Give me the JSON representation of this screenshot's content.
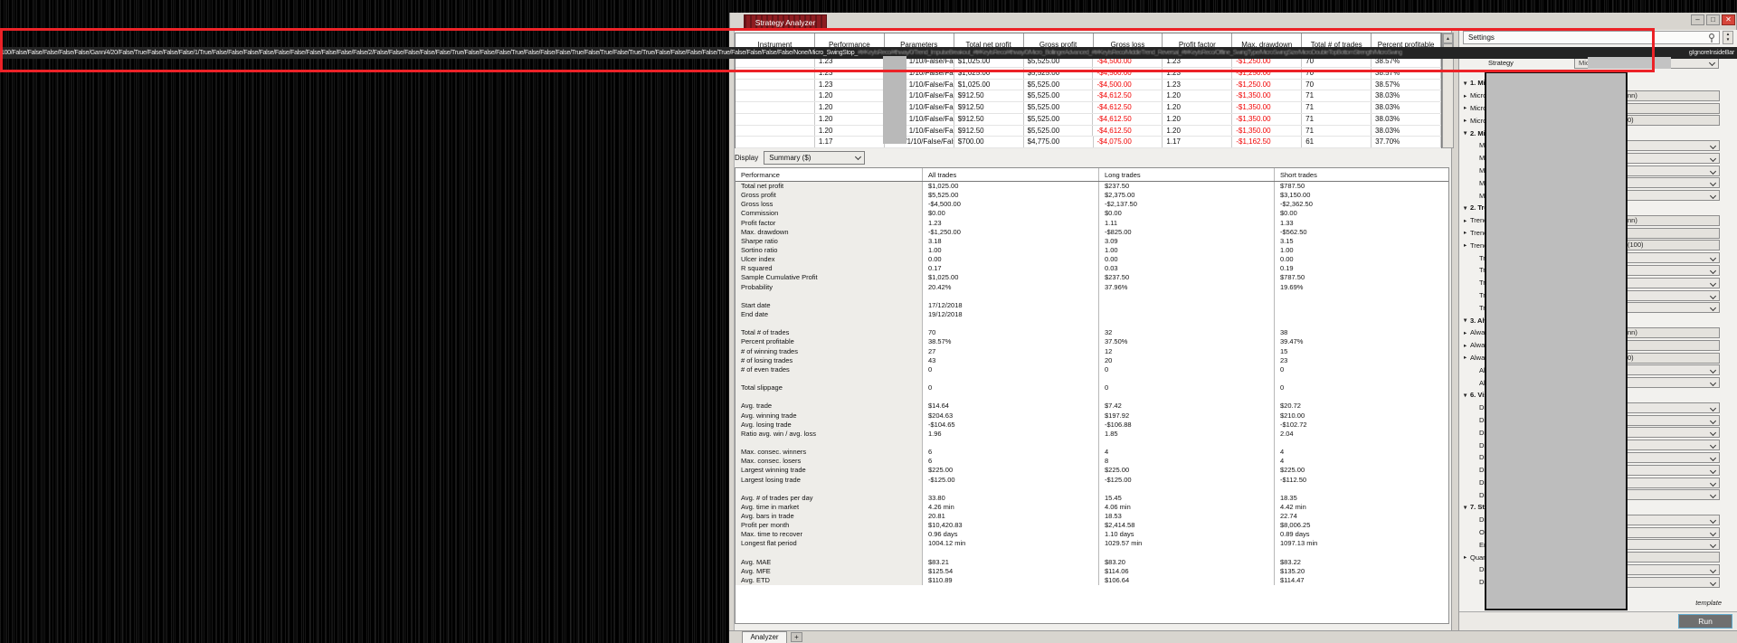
{
  "window": {
    "title": "Strategy Analyzer"
  },
  "icons": {
    "minimize": "–",
    "maximize": "□",
    "close": "✕",
    "spinner_up": "▲",
    "spinner_down": "▼",
    "section_arrow": "▾",
    "expander_arrow": "▸"
  },
  "overlay_bar": {
    "visible_text": "100/False/False/False/False/False/Gann/4/20/False/True/False/False/False/1/True/False/False/False/False/False/False/False/False/False/False/2/False/False/False/False/False/True/False/False/False/True/False/False/False/True/False/True/False/True/True/False/False/False/False/True/False/False/False/False/None/Micro_SwingStop_",
    "obscured_text": "#t#KeyIsReco/#thway/0/Trend_ImpulseBreakout_#t#KeyIsReco/#thway/0/Micro_BollingerAdvanced_#t#KeyIsReco/MiddleTrend_Reversal_#t#KeyIsReco/Offline_SwingType/MicroSwingSize/MicroDoubleTopBottomStrength/MicroSwing",
    "tail_text": "gIgnoreInsideBar"
  },
  "results_table": {
    "columns": [
      "Instrument",
      "Performance",
      "Parameters",
      "Total net profit",
      "Gross profit",
      "Gross loss",
      "Profit factor",
      "Max. drawdown",
      "Total # of trades",
      "Percent profitable"
    ],
    "rows": [
      [
        "",
        "1.23",
        "1/10/False/False",
        "$1,025.00",
        "$5,525.00",
        "-$4,500.00",
        "1.23",
        "-$1,250.00",
        "70",
        "38.57%"
      ],
      [
        "",
        "1.23",
        "1/10/False/False",
        "$1,025.00",
        "$5,525.00",
        "-$4,500.00",
        "1.23",
        "-$1,250.00",
        "70",
        "38.57%"
      ],
      [
        "",
        "1.23",
        "1/10/False/False",
        "$1,025.00",
        "$5,525.00",
        "-$4,500.00",
        "1.23",
        "-$1,250.00",
        "70",
        "38.57%"
      ],
      [
        "",
        "1.20",
        "1/10/False/False",
        "$912.50",
        "$5,525.00",
        "-$4,612.50",
        "1.20",
        "-$1,350.00",
        "71",
        "38.03%"
      ],
      [
        "",
        "1.20",
        "1/10/False/False",
        "$912.50",
        "$5,525.00",
        "-$4,612.50",
        "1.20",
        "-$1,350.00",
        "71",
        "38.03%"
      ],
      [
        "",
        "1.20",
        "1/10/False/False",
        "$912.50",
        "$5,525.00",
        "-$4,612.50",
        "1.20",
        "-$1,350.00",
        "71",
        "38.03%"
      ],
      [
        "",
        "1.20",
        "1/10/False/False",
        "$912.50",
        "$5,525.00",
        "-$4,612.50",
        "1.20",
        "-$1,350.00",
        "71",
        "38.03%"
      ],
      [
        "",
        "1.17",
        "Gann/1/10/False/False",
        "$700.00",
        "$4,775.00",
        "-$4,075.00",
        "1.17",
        "-$1,162.50",
        "61",
        "37.70%"
      ]
    ]
  },
  "display_bar": {
    "label": "Display",
    "value": "Summary ($)"
  },
  "performance_table": {
    "headers": [
      "Performance",
      "All trades",
      "Long trades",
      "Short trades"
    ],
    "rows": [
      {
        "label": "Total net profit",
        "all": "$1,025.00",
        "long": "$237.50",
        "short": "$787.50"
      },
      {
        "label": "Gross profit",
        "all": "$5,525.00",
        "long": "$2,375.00",
        "short": "$3,150.00"
      },
      {
        "label": "Gross loss",
        "all": "-$4,500.00",
        "long": "-$2,137.50",
        "short": "-$2,362.50"
      },
      {
        "label": "Commission",
        "all": "$0.00",
        "long": "$0.00",
        "short": "$0.00"
      },
      {
        "label": "Profit factor",
        "all": "1.23",
        "long": "1.11",
        "short": "1.33"
      },
      {
        "label": "Max. drawdown",
        "all": "-$1,250.00",
        "long": "-$825.00",
        "short": "-$562.50"
      },
      {
        "label": "Sharpe ratio",
        "all": "3.18",
        "long": "3.09",
        "short": "3.15"
      },
      {
        "label": "Sortino ratio",
        "all": "1.00",
        "long": "1.00",
        "short": "1.00"
      },
      {
        "label": "Ulcer index",
        "all": "0.00",
        "long": "0.00",
        "short": "0.00"
      },
      {
        "label": "R squared",
        "all": "0.17",
        "long": "0.03",
        "short": "0.19"
      },
      {
        "label": "Sample Cumulative Profit",
        "all": "$1,025.00",
        "long": "$237.50",
        "short": "$787.50"
      },
      {
        "label": "Probability",
        "all": "20.42%",
        "long": "37.96%",
        "short": "19.69%"
      },
      {
        "label": "",
        "all": "",
        "long": "",
        "short": ""
      },
      {
        "label": "Start date",
        "all": "17/12/2018",
        "long": "",
        "short": ""
      },
      {
        "label": "End date",
        "all": "19/12/2018",
        "long": "",
        "short": ""
      },
      {
        "label": "",
        "all": "",
        "long": "",
        "short": ""
      },
      {
        "label": "Total # of trades",
        "all": "70",
        "long": "32",
        "short": "38"
      },
      {
        "label": "Percent profitable",
        "all": "38.57%",
        "long": "37.50%",
        "short": "39.47%"
      },
      {
        "label": "# of winning trades",
        "all": "27",
        "long": "12",
        "short": "15"
      },
      {
        "label": "# of losing trades",
        "all": "43",
        "long": "20",
        "short": "23"
      },
      {
        "label": "# of even trades",
        "all": "0",
        "long": "0",
        "short": "0"
      },
      {
        "label": "",
        "all": "",
        "long": "",
        "short": ""
      },
      {
        "label": "Total slippage",
        "all": "0",
        "long": "0",
        "short": "0"
      },
      {
        "label": "",
        "all": "",
        "long": "",
        "short": ""
      },
      {
        "label": "Avg. trade",
        "all": "$14.64",
        "long": "$7.42",
        "short": "$20.72"
      },
      {
        "label": "Avg. winning trade",
        "all": "$204.63",
        "long": "$197.92",
        "short": "$210.00"
      },
      {
        "label": "Avg. losing trade",
        "all": "-$104.65",
        "long": "-$106.88",
        "short": "-$102.72"
      },
      {
        "label": "Ratio avg. win / avg. loss",
        "all": "1.96",
        "long": "1.85",
        "short": "2.04"
      },
      {
        "label": "",
        "all": "",
        "long": "",
        "short": ""
      },
      {
        "label": "Max. consec. winners",
        "all": "6",
        "long": "4",
        "short": "4"
      },
      {
        "label": "Max. consec. losers",
        "all": "6",
        "long": "8",
        "short": "4"
      },
      {
        "label": "Largest winning trade",
        "all": "$225.00",
        "long": "$225.00",
        "short": "$225.00"
      },
      {
        "label": "Largest losing trade",
        "all": "-$125.00",
        "long": "-$125.00",
        "short": "-$112.50"
      },
      {
        "label": "",
        "all": "",
        "long": "",
        "short": ""
      },
      {
        "label": "Avg. # of trades per day",
        "all": "33.80",
        "long": "15.45",
        "short": "18.35"
      },
      {
        "label": "Avg. time in market",
        "all": "4.26 min",
        "long": "4.06 min",
        "short": "4.42 min"
      },
      {
        "label": "Avg. bars in trade",
        "all": "20.81",
        "long": "18.53",
        "short": "22.74"
      },
      {
        "label": "Profit per month",
        "all": "$10,420.83",
        "long": "$2,414.58",
        "short": "$8,006.25"
      },
      {
        "label": "Max. time to recover",
        "all": "0.96 days",
        "long": "1.10 days",
        "short": "0.89 days"
      },
      {
        "label": "Longest flat period",
        "all": "1004.12 min",
        "long": "1029.57 min",
        "short": "1097.13 min"
      },
      {
        "label": "",
        "all": "",
        "long": "",
        "short": ""
      },
      {
        "label": "Avg. MAE",
        "all": "$83.21",
        "long": "$83.20",
        "short": "$83.22"
      },
      {
        "label": "Avg. MFE",
        "all": "$125.54",
        "long": "$114.06",
        "short": "$135.20"
      },
      {
        "label": "Avg. ETD",
        "all": "$110.89",
        "long": "$106.64",
        "short": "$114.47"
      }
    ]
  },
  "settings": {
    "header": "Settings",
    "strategy_label": "Strategy",
    "strategy_value": "MicroSwingStrategyTest",
    "items": [
      {
        "kind": "section",
        "label": "1. Mic"
      },
      {
        "kind": "field",
        "expander": true,
        "label": "Micro",
        "control": "box",
        "tail": "nn)"
      },
      {
        "kind": "field",
        "expander": true,
        "label": "Micro",
        "control": "box",
        "tail": ""
      },
      {
        "kind": "field",
        "expander": true,
        "label": "Micro",
        "control": "box",
        "tail": "0)"
      },
      {
        "kind": "section",
        "label": "2. Mic"
      },
      {
        "kind": "field",
        "expander": false,
        "label": "Micr",
        "control": "dropdown",
        "tail": ""
      },
      {
        "kind": "field",
        "expander": false,
        "label": "Micr",
        "control": "dropdown",
        "tail": ""
      },
      {
        "kind": "field",
        "expander": false,
        "label": "Micr",
        "control": "dropdown",
        "tail": ""
      },
      {
        "kind": "field",
        "expander": false,
        "label": "Micr",
        "control": "dropdown",
        "tail": ""
      },
      {
        "kind": "field",
        "expander": false,
        "label": "Micr",
        "control": "dropdown",
        "tail": ""
      },
      {
        "kind": "section",
        "label": "2. Tre"
      },
      {
        "kind": "field",
        "expander": true,
        "label": "Trend",
        "control": "box",
        "tail": "nn)"
      },
      {
        "kind": "field",
        "expander": true,
        "label": "Trend",
        "control": "box",
        "tail": ""
      },
      {
        "kind": "field",
        "expander": true,
        "label": "Trend",
        "control": "box",
        "tail": "(100)"
      },
      {
        "kind": "field",
        "expander": false,
        "label": "Tren",
        "control": "dropdown",
        "tail": ""
      },
      {
        "kind": "field",
        "expander": false,
        "label": "Tren",
        "control": "dropdown",
        "tail": ""
      },
      {
        "kind": "field",
        "expander": false,
        "label": "Tren",
        "control": "dropdown",
        "tail": ""
      },
      {
        "kind": "field",
        "expander": false,
        "label": "Tren",
        "control": "dropdown",
        "tail": ""
      },
      {
        "kind": "field",
        "expander": false,
        "label": "Tren",
        "control": "dropdown",
        "tail": ""
      },
      {
        "kind": "section",
        "label": "3. Alw"
      },
      {
        "kind": "field",
        "expander": true,
        "label": "Alway",
        "control": "box",
        "tail": "nn)"
      },
      {
        "kind": "field",
        "expander": true,
        "label": "Alway",
        "control": "box",
        "tail": ""
      },
      {
        "kind": "field",
        "expander": true,
        "label": "Alway",
        "control": "box",
        "tail": "0)"
      },
      {
        "kind": "field",
        "expander": false,
        "label": "Alwa",
        "control": "dropdown",
        "tail": ""
      },
      {
        "kind": "field",
        "expander": false,
        "label": "Alwa",
        "control": "dropdown",
        "tail": ""
      },
      {
        "kind": "section",
        "label": "6. Vis"
      },
      {
        "kind": "field",
        "expander": false,
        "label": "Disp",
        "control": "dropdown",
        "tail": ""
      },
      {
        "kind": "field",
        "expander": false,
        "label": "Disp",
        "control": "dropdown",
        "tail": ""
      },
      {
        "kind": "field",
        "expander": false,
        "label": "Disp",
        "control": "dropdown",
        "tail": ""
      },
      {
        "kind": "field",
        "expander": false,
        "label": "Disp",
        "control": "dropdown",
        "tail": ""
      },
      {
        "kind": "field",
        "expander": false,
        "label": "Disp",
        "control": "dropdown",
        "tail": ""
      },
      {
        "kind": "field",
        "expander": false,
        "label": "Disp",
        "control": "dropdown",
        "tail": ""
      },
      {
        "kind": "field",
        "expander": false,
        "label": "Disp",
        "control": "dropdown",
        "tail": ""
      },
      {
        "kind": "field",
        "expander": false,
        "label": "Disp",
        "control": "dropdown",
        "tail": ""
      },
      {
        "kind": "section",
        "label": "7. Str"
      },
      {
        "kind": "field",
        "expander": false,
        "label": "Disa",
        "control": "dropdown",
        "tail": ""
      },
      {
        "kind": "field",
        "expander": false,
        "label": "Opti",
        "control": "dropdown",
        "tail": ""
      },
      {
        "kind": "field",
        "expander": false,
        "label": "Enab",
        "control": "dropdown",
        "tail": ""
      },
      {
        "kind": "field",
        "expander": true,
        "label": "Quan",
        "control": "box",
        "tail": ""
      },
      {
        "kind": "field",
        "expander": false,
        "label": "Disa",
        "control": "dropdown",
        "tail": ""
      },
      {
        "kind": "field",
        "expander": false,
        "label": "Di",
        "control": "dropdown",
        "tail": ""
      }
    ],
    "template_label": "template",
    "run_label": "Run"
  },
  "tab_bar": {
    "tab": "Analyzer",
    "add": "+"
  },
  "annotation_color": "#ec2227"
}
